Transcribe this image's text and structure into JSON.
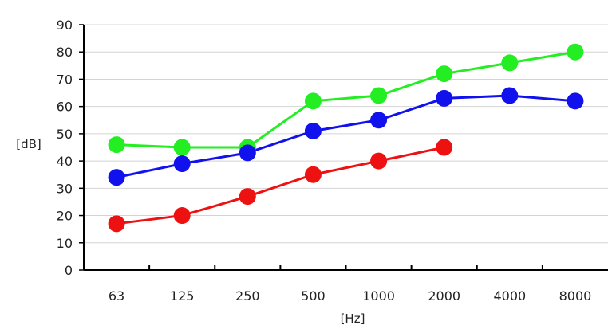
{
  "chart_data": {
    "type": "line",
    "title": "",
    "xlabel": "[Hz]",
    "ylabel": "[dB]",
    "categories": [
      "63",
      "125",
      "250",
      "500",
      "1000",
      "2000",
      "4000",
      "8000"
    ],
    "ylim": [
      0,
      90
    ],
    "yticks": [
      0,
      10,
      20,
      30,
      40,
      50,
      60,
      70,
      80,
      90
    ],
    "grid": true,
    "series": [
      {
        "color": "#22ee22",
        "values": [
          46,
          45,
          45,
          62,
          64,
          72,
          76,
          80
        ]
      },
      {
        "color": "#1111ee",
        "values": [
          34,
          39,
          43,
          51,
          55,
          63,
          64,
          62
        ]
      },
      {
        "color": "#ee1111",
        "values": [
          17,
          20,
          27,
          35,
          40,
          45,
          null,
          null
        ]
      }
    ]
  }
}
